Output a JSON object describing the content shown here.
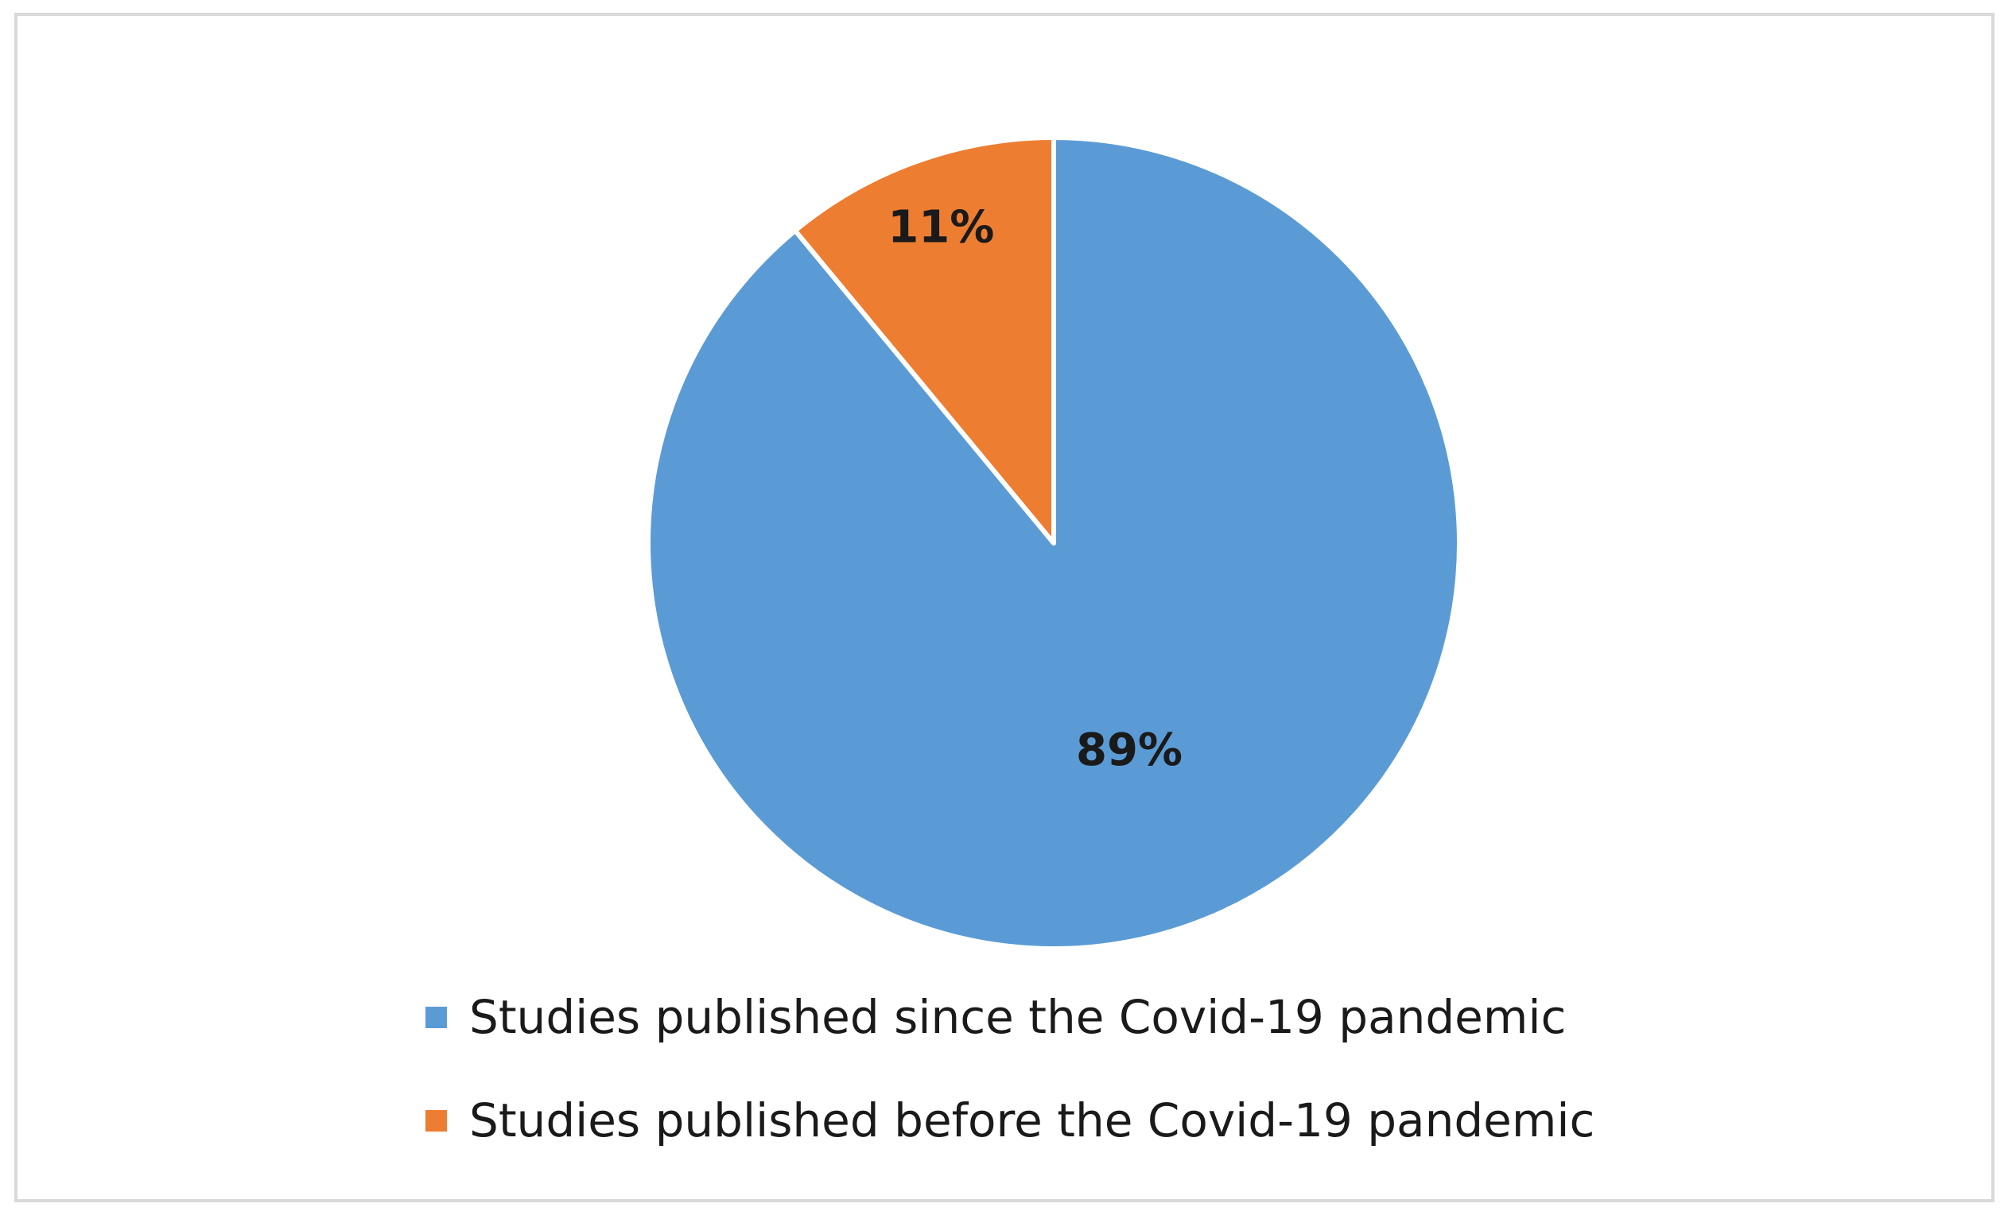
{
  "chart_data": {
    "type": "pie",
    "title": "",
    "slices": [
      {
        "label": "Studies published since the Covid-19 pandemic",
        "value": 89,
        "value_label": "89%",
        "color": "#5b9bd5"
      },
      {
        "label": "Studies published before the Covid-19 pandemic",
        "value": 11,
        "value_label": "11%",
        "color": "#ed7d31"
      }
    ],
    "start_angle": "12 o'clock, slices drawn counter-clockwise from the second entry",
    "legend_position": "bottom",
    "border_color": "#d9d9d9"
  }
}
